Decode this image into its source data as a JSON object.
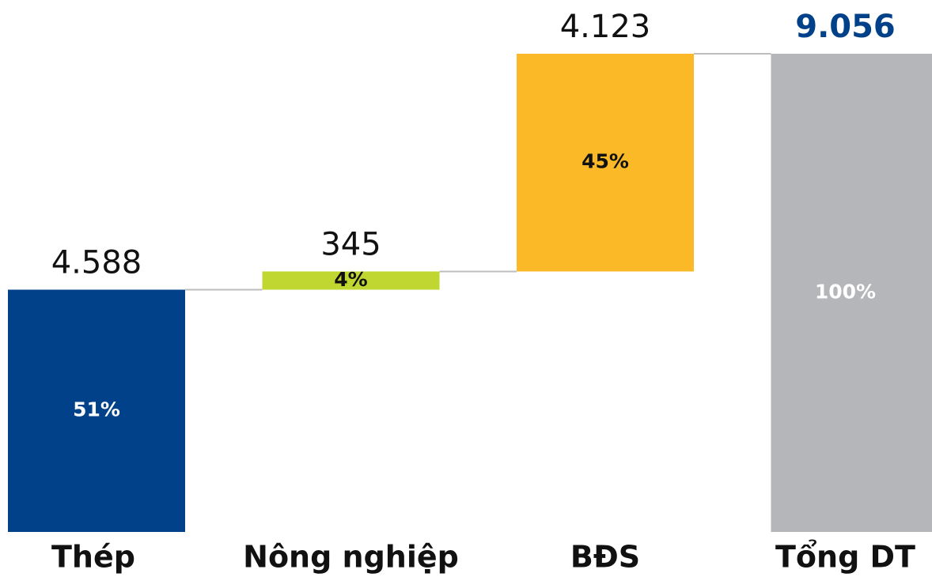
{
  "chart_data": {
    "type": "waterfall",
    "categories": [
      "Thép",
      "Nông nghiệp",
      "BĐS",
      "Tổng DT"
    ],
    "values": [
      4588,
      345,
      4123,
      9056
    ],
    "value_labels": [
      "4.588",
      "345",
      "4.123",
      "9.056"
    ],
    "colors": [
      "#004189",
      "#c0d731",
      "#fbb827",
      "#b5b6ba"
    ],
    "percents": [
      51,
      4,
      45,
      100
    ],
    "percent_labels": [
      "51%",
      "4%",
      "45%",
      "100%"
    ]
  }
}
